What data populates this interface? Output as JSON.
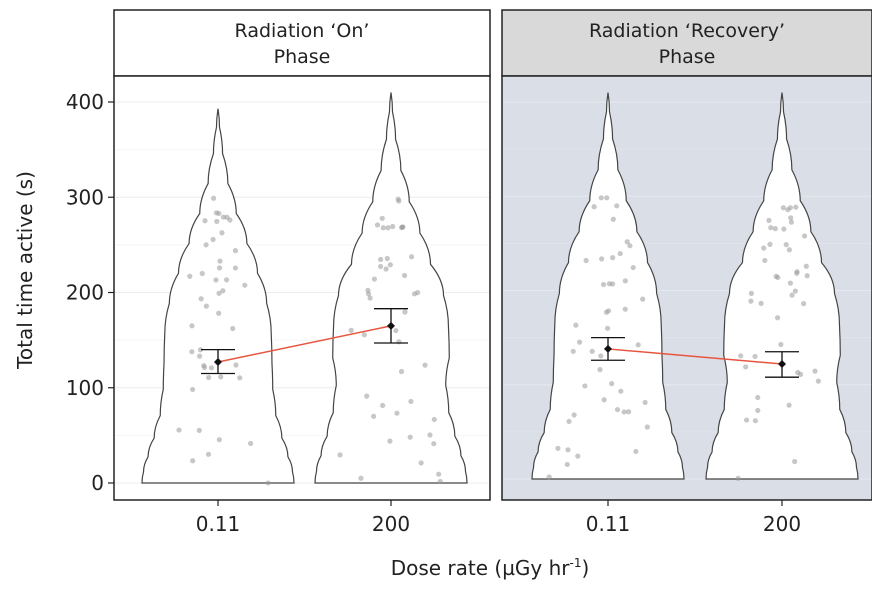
{
  "chart_data": {
    "type": "violin",
    "ylabel": "Total time active (s)",
    "xlabel_main": "Dose rate (µGy hr",
    "xlabel_sup": "-1",
    "xlabel_close": ")",
    "ylim": [
      0,
      420
    ],
    "yticks": [
      0,
      100,
      200,
      300,
      400
    ],
    "grid": true,
    "panels": [
      {
        "title_line1": "Radiation ‘On’",
        "title_line2": "Phase",
        "strip_color": "#ffffff",
        "panel_bg": "#ffffff",
        "categories": [
          "0.11",
          "200"
        ],
        "means": [
          127,
          165
        ],
        "se_lower": [
          115,
          147
        ],
        "se_upper": [
          140,
          183
        ],
        "max": [
          393,
          410
        ]
      },
      {
        "title_line1": "Radiation ‘Recovery’",
        "title_line2": "Phase",
        "strip_color": "#d9d9d9",
        "panel_bg": "#dadee6",
        "categories": [
          "0.11",
          "200"
        ],
        "means": [
          138,
          122
        ],
        "se_lower": [
          126,
          108
        ],
        "se_upper": [
          150,
          135
        ],
        "max": [
          410,
          410
        ]
      }
    ],
    "mean_line_color": "#e8553f"
  }
}
